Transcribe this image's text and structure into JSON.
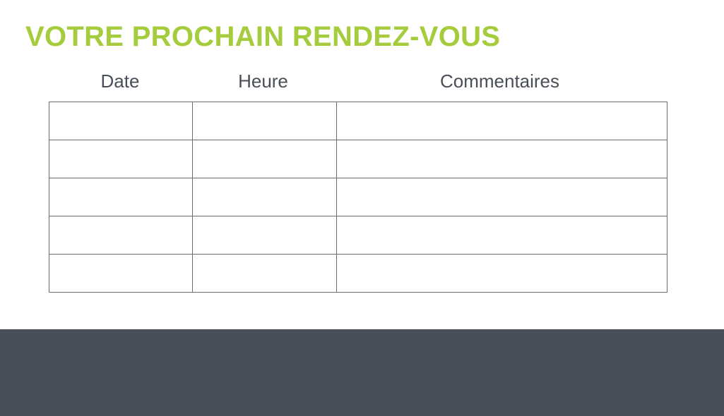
{
  "title": "VOTRE PROCHAIN RENDEZ-VOUS",
  "table": {
    "headers": [
      "Date",
      "Heure",
      "Commentaires"
    ],
    "rows": [
      [
        "",
        "",
        ""
      ],
      [
        "",
        "",
        ""
      ],
      [
        "",
        "",
        ""
      ],
      [
        "",
        "",
        ""
      ],
      [
        "",
        "",
        ""
      ]
    ]
  },
  "colors": {
    "accent": "#a4cc3c",
    "footer": "#4a4e57",
    "text": "#4a4e57"
  }
}
